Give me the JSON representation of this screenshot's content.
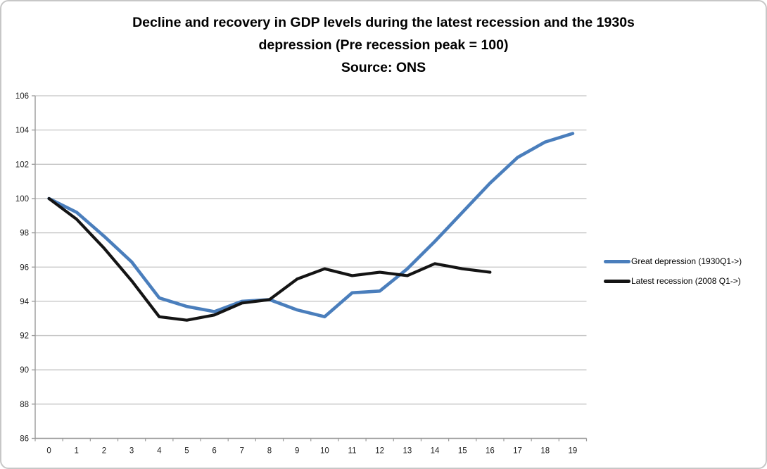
{
  "window": {
    "background": "#ffffff",
    "border_color": "#c7c7c7"
  },
  "chart_data": {
    "type": "line",
    "title_lines": [
      "Decline and recovery in GDP levels during the latest recession and the 1930s",
      "depression (Pre recession peak = 100)",
      "Source: ONS"
    ],
    "x": [
      0,
      1,
      2,
      3,
      4,
      5,
      6,
      7,
      8,
      9,
      10,
      11,
      12,
      13,
      14,
      15,
      16,
      17,
      18,
      19
    ],
    "series": [
      {
        "name": "Great depression (1930Q1->)",
        "color": "#4a7ebc",
        "stroke_width": 4.6,
        "values": [
          100,
          99.2,
          97.8,
          96.3,
          94.2,
          93.7,
          93.4,
          94.0,
          94.1,
          93.5,
          93.1,
          94.5,
          94.6,
          95.9,
          97.5,
          99.2,
          100.9,
          102.4,
          103.3,
          103.8
        ]
      },
      {
        "name": "Latest recession (2008 Q1->)",
        "color": "#141414",
        "stroke_width": 4.2,
        "values": [
          100,
          98.8,
          97.1,
          95.2,
          93.1,
          92.9,
          93.2,
          93.9,
          94.1,
          95.3,
          95.9,
          95.5,
          95.7,
          95.5,
          96.2,
          95.9,
          95.7
        ]
      }
    ],
    "ylim": [
      86,
      106
    ],
    "ytick_step": 2,
    "ytick_labels": [
      "86",
      "88",
      "90",
      "92",
      "94",
      "96",
      "98",
      "100",
      "102",
      "104",
      "106"
    ],
    "xlabel": "",
    "ylabel": "",
    "grid": "horizontal",
    "gridline_color": "#c4c4c4",
    "axis_color": "#9a9a9a",
    "tick_label_color": "#1f1f1f",
    "legend_position": "right-middle"
  }
}
